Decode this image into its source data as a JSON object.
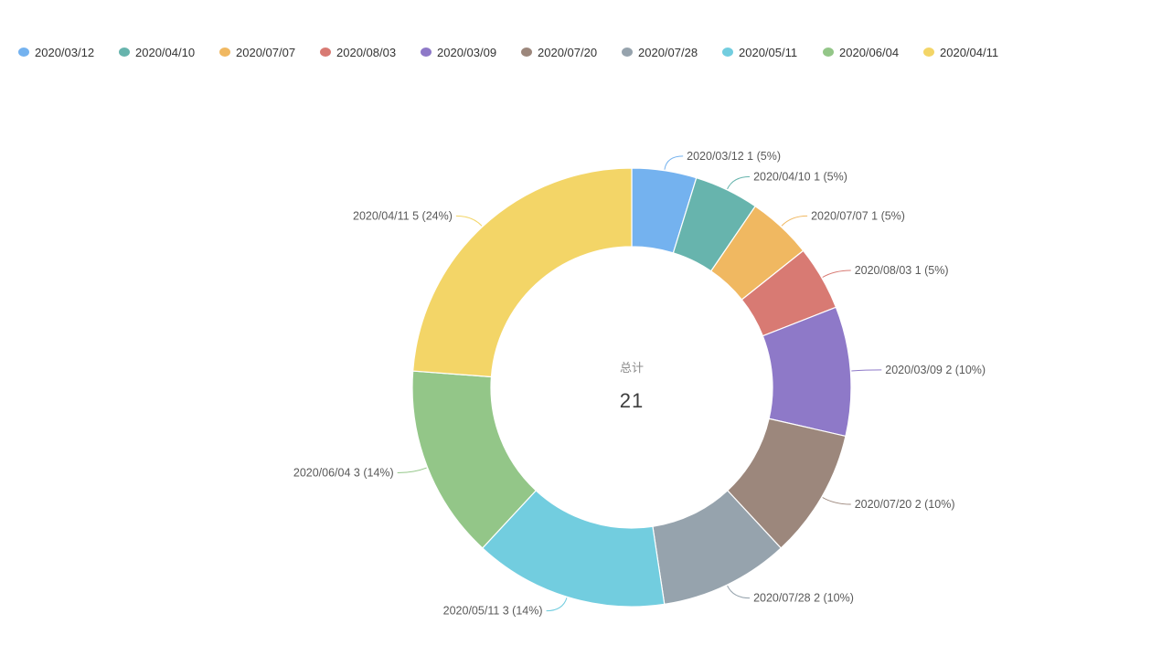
{
  "chart_data": {
    "type": "pie",
    "donut": true,
    "center_title": "总计",
    "center_value": "21",
    "legend_position": "top-left",
    "slices": [
      {
        "name": "2020/03/12",
        "value": 1,
        "percent": "5%",
        "color": "#74b2ef"
      },
      {
        "name": "2020/04/10",
        "value": 1,
        "percent": "5%",
        "color": "#67b4ad"
      },
      {
        "name": "2020/07/07",
        "value": 1,
        "percent": "5%",
        "color": "#f0b861"
      },
      {
        "name": "2020/08/03",
        "value": 1,
        "percent": "5%",
        "color": "#d87a73"
      },
      {
        "name": "2020/03/09",
        "value": 2,
        "percent": "10%",
        "color": "#8e79c8"
      },
      {
        "name": "2020/07/20",
        "value": 2,
        "percent": "10%",
        "color": "#9c877c"
      },
      {
        "name": "2020/07/28",
        "value": 2,
        "percent": "10%",
        "color": "#96a3ad"
      },
      {
        "name": "2020/05/11",
        "value": 3,
        "percent": "14%",
        "color": "#72cddf"
      },
      {
        "name": "2020/06/04",
        "value": 3,
        "percent": "14%",
        "color": "#93c688"
      },
      {
        "name": "2020/04/11",
        "value": 5,
        "percent": "24%",
        "color": "#f3d567"
      }
    ]
  }
}
